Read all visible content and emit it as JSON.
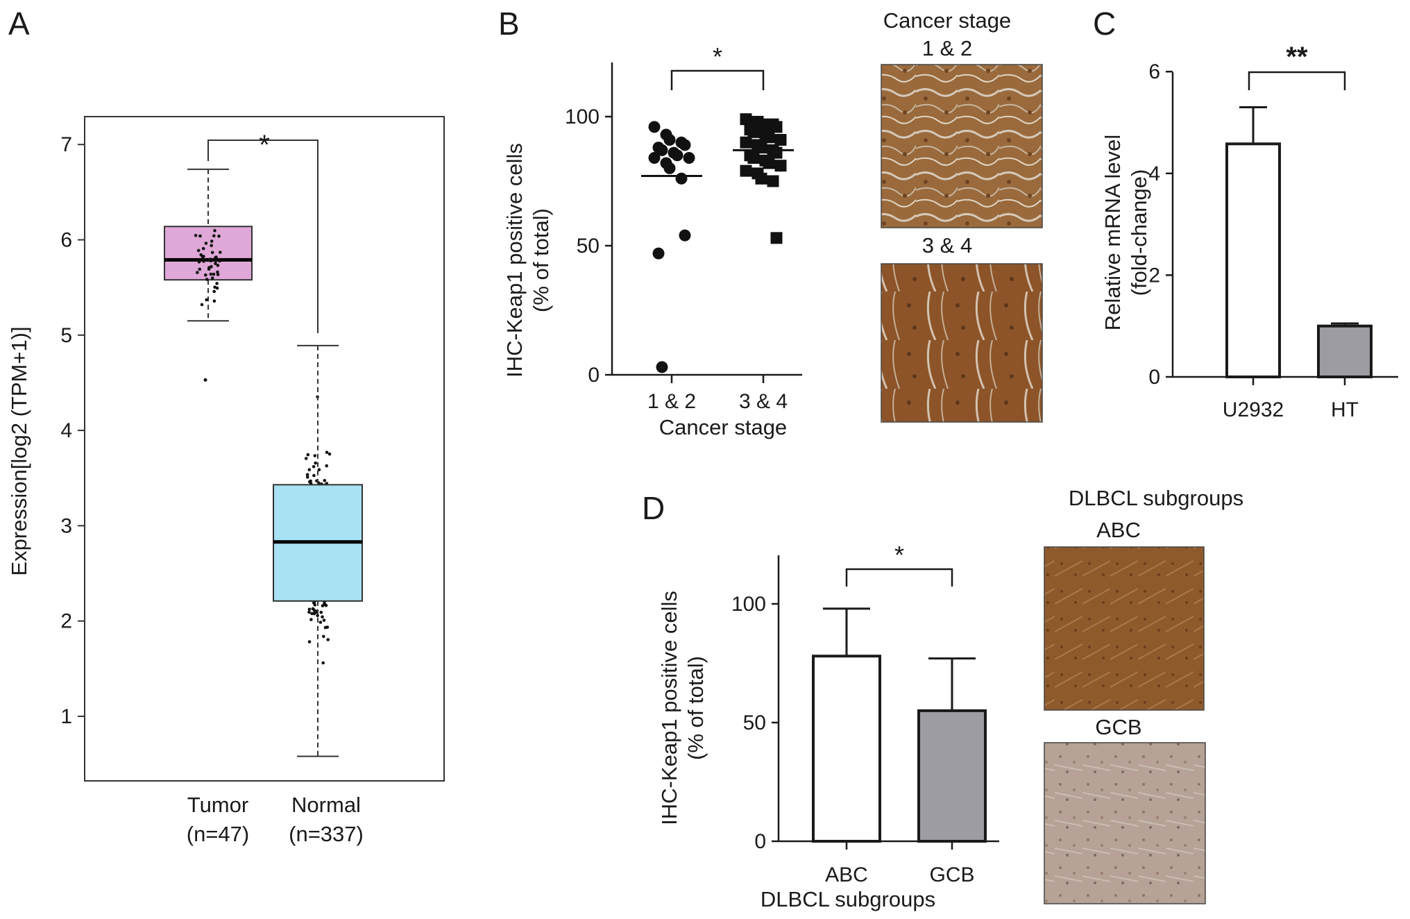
{
  "panels": {
    "A": "A",
    "B": "B",
    "C": "C",
    "D": "D"
  },
  "colors": {
    "tumor_box": "#dfa8d8",
    "normal_box": "#a8e2f3",
    "significance_A": "#e8463c",
    "bar_gcb": "#9c9ca2",
    "bar_ht": "#9c9ca2",
    "ihc_brown": "#8a5a2e",
    "ihc_light": "#b8a294"
  },
  "chart_data": [
    {
      "id": "A",
      "type": "box",
      "ylabel": "Expression[log2 (TPM+1)]",
      "ylim": [
        0.4,
        7.4
      ],
      "yticks": [
        1,
        2,
        3,
        4,
        5,
        6,
        7
      ],
      "significance": "*",
      "series": [
        {
          "name": "Tumor",
          "n_label": "(n=47)",
          "q1": 5.58,
          "median": 5.79,
          "q3": 6.14,
          "whisker_low": 5.15,
          "whisker_high": 6.74,
          "outliers": [
            4.53
          ]
        },
        {
          "name": "Normal",
          "n_label": "(n=337)",
          "q1": 2.21,
          "median": 2.83,
          "q3": 3.43,
          "whisker_low": 0.58,
          "whisker_high": 4.89,
          "outliers": []
        }
      ]
    },
    {
      "id": "B",
      "type": "scatter",
      "ylabel": "IHC-Keap1 positive cells",
      "ylabel2": "(% of total)",
      "xlabel": "Cancer stage",
      "ylim": [
        0,
        120
      ],
      "yticks": [
        0,
        50,
        100
      ],
      "significance": "*",
      "groups": [
        {
          "name": "1 & 2",
          "marker": "circle",
          "mean": 77,
          "values": [
            96,
            93,
            91,
            90,
            89,
            88,
            87,
            86,
            85,
            84,
            84,
            82,
            80,
            76,
            54,
            47,
            3
          ]
        },
        {
          "name": "3 & 4",
          "marker": "square",
          "mean": 87,
          "values": [
            99,
            98,
            97,
            97,
            96,
            95,
            94,
            93,
            92,
            91,
            90,
            89,
            88,
            87,
            86,
            85,
            84,
            83,
            82,
            81,
            79,
            78,
            76,
            75,
            53
          ]
        }
      ]
    },
    {
      "id": "C",
      "type": "bar",
      "ylabel": "Relative mRNA level",
      "ylabel2": "(fold-change)",
      "ylim": [
        0,
        6
      ],
      "yticks": [
        0,
        2,
        4,
        6
      ],
      "significance": "**",
      "categories": [
        "U2932",
        "HT"
      ],
      "values": [
        4.58,
        1.0
      ],
      "errors": [
        0.72,
        0.05
      ]
    },
    {
      "id": "D",
      "type": "bar",
      "ylabel": "IHC-Keap1 positive cells",
      "ylabel2": "(% of total)",
      "xlabel": "DLBCL subgroups",
      "ylim": [
        0,
        120
      ],
      "yticks": [
        0,
        50,
        100
      ],
      "significance": "*",
      "categories": [
        "ABC",
        "GCB"
      ],
      "values": [
        78,
        55
      ],
      "errors": [
        20,
        22
      ]
    }
  ],
  "micrographs": {
    "b_header": "Cancer stage",
    "b_top": "1 & 2",
    "b_bottom": "3 & 4",
    "d_header": "DLBCL subgroups",
    "d_top": "ABC",
    "d_bottom": "GCB"
  }
}
